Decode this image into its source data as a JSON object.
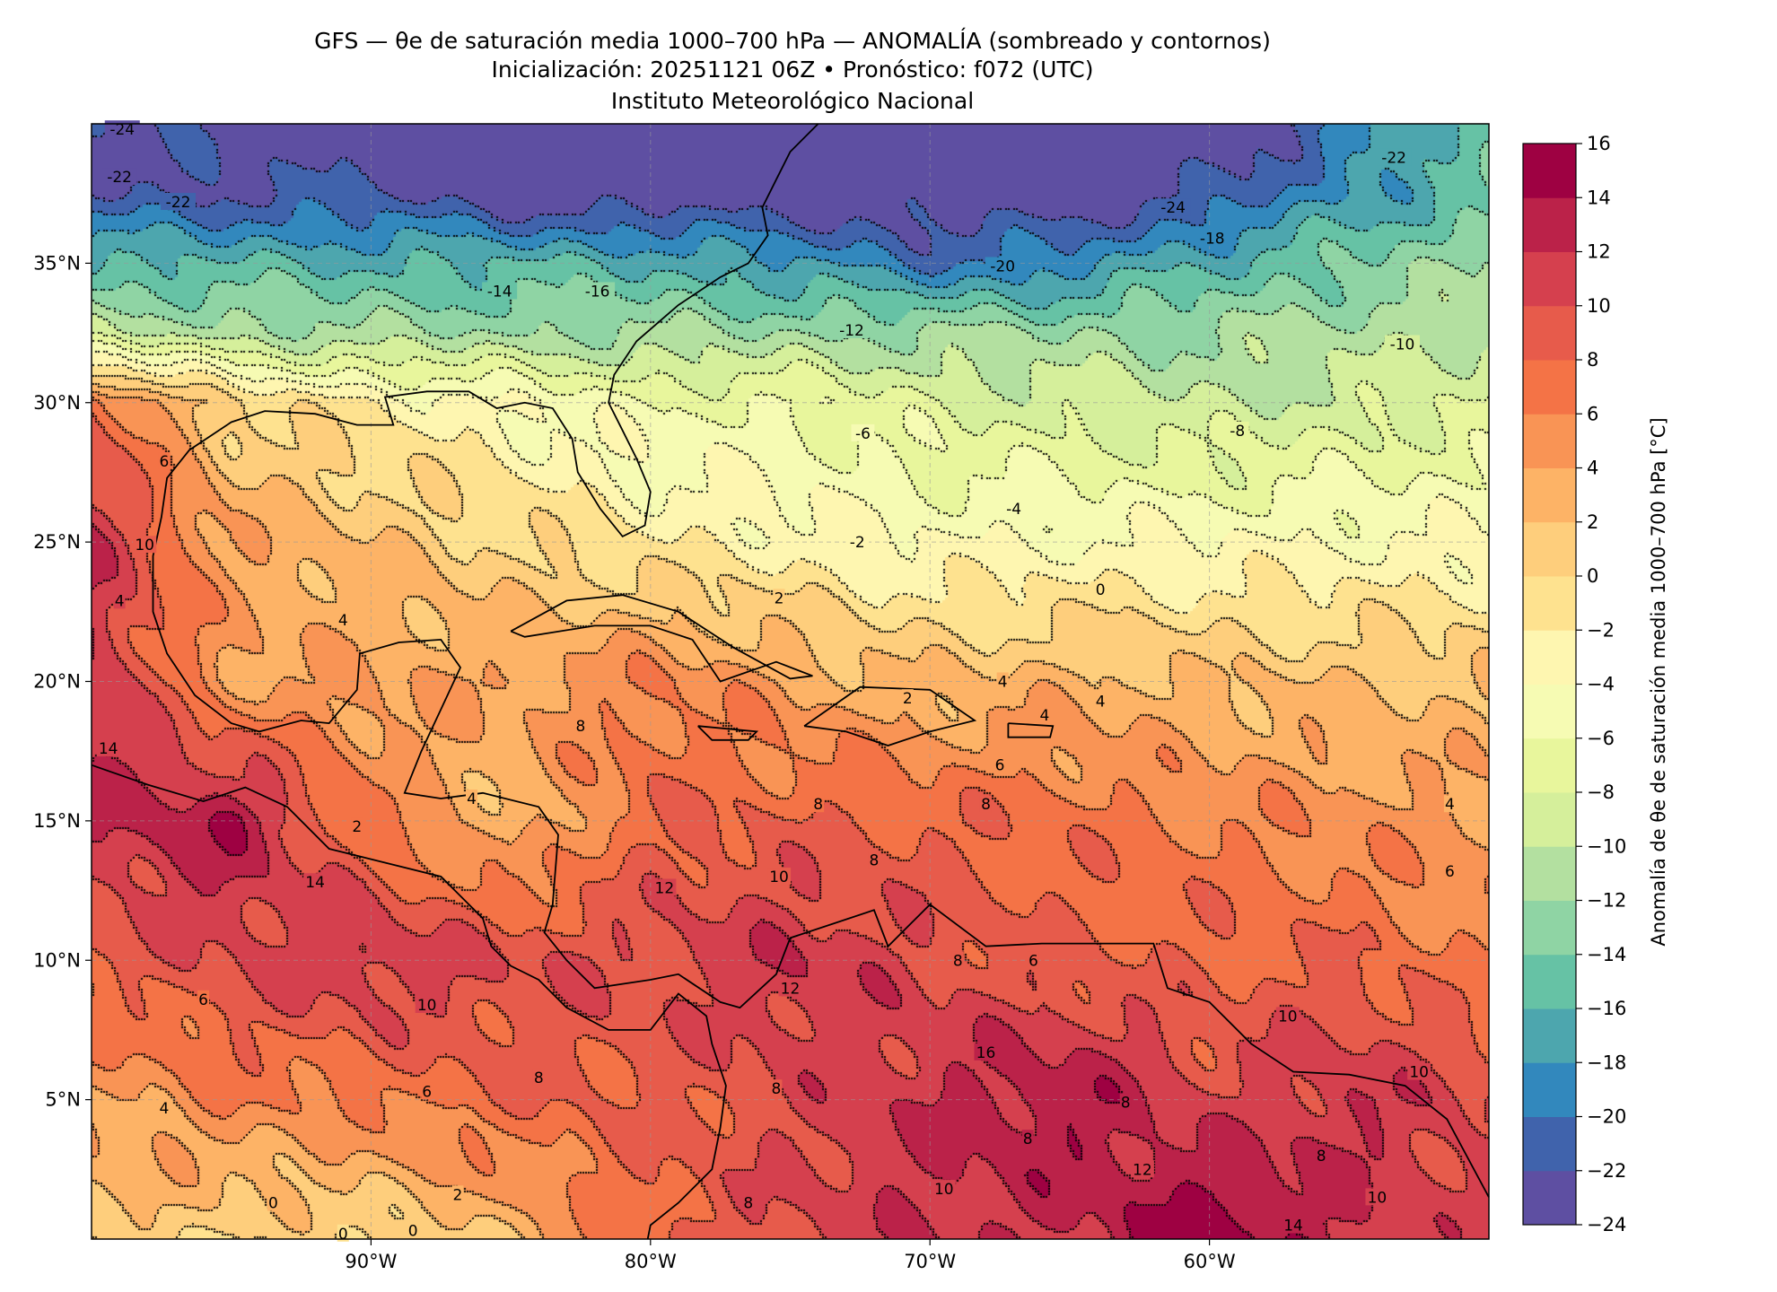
{
  "title": {
    "line1": "GFS — θe de saturación media 1000–700 hPa — ANOMALÍA (sombreado y contornos)",
    "line2": "Inicialización: 20251121 06Z   •   Pronóstico: f072 (UTC)",
    "line3": "Instituto Meteorológico Nacional"
  },
  "chart_data": {
    "type": "heatmap",
    "projection": "equirectangular",
    "extent": {
      "lon": [
        -100,
        -50
      ],
      "lat": [
        0,
        40
      ]
    },
    "x_ticks": [
      {
        "value": -90,
        "label": "90°W"
      },
      {
        "value": -80,
        "label": "80°W"
      },
      {
        "value": -70,
        "label": "70°W"
      },
      {
        "value": -60,
        "label": "60°W"
      }
    ],
    "y_ticks": [
      {
        "value": 5,
        "label": "5°N"
      },
      {
        "value": 10,
        "label": "10°N"
      },
      {
        "value": 15,
        "label": "15°N"
      },
      {
        "value": 20,
        "label": "20°N"
      },
      {
        "value": 25,
        "label": "25°N"
      },
      {
        "value": 30,
        "label": "30°N"
      },
      {
        "value": 35,
        "label": "35°N"
      }
    ],
    "grid": true,
    "colorbar": {
      "label": "Anomalía de θe de saturación media 1000–700 hPa [°C]",
      "location": "right",
      "levels": [
        -24,
        -22,
        -20,
        -18,
        -16,
        -14,
        -12,
        -10,
        -8,
        -6,
        -4,
        -2,
        0,
        2,
        4,
        6,
        8,
        10,
        12,
        14,
        16
      ],
      "tick_labels": [
        "−24",
        "−22",
        "−20",
        "−18",
        "−16",
        "−14",
        "−12",
        "−10",
        "−8",
        "−6",
        "−4",
        "−2",
        "0",
        "2",
        "4",
        "6",
        "8",
        "10",
        "12",
        "14",
        "16"
      ],
      "colors": [
        "#5e4fa2",
        "#4063ac",
        "#3288bd",
        "#4da6ae",
        "#66c2a5",
        "#8fd4a4",
        "#b3e0a0",
        "#d5ef9b",
        "#e8f69c",
        "#f6fbb3",
        "#fef6b0",
        "#fee28f",
        "#fece7c",
        "#fdb366",
        "#f99455",
        "#f47346",
        "#e75b4b",
        "#d5404e",
        "#bb2249",
        "#9e0142"
      ]
    },
    "field": {
      "units": "°C",
      "lons": [
        -100,
        -95,
        -90,
        -85,
        -80,
        -75,
        -70,
        -65,
        -60,
        -55,
        -50
      ],
      "lats": [
        40,
        37.5,
        35,
        32.5,
        30,
        25,
        20,
        15,
        10,
        5,
        0
      ],
      "values": [
        [
          -22,
          -23,
          -24,
          -24,
          -24,
          -24,
          -24,
          -24,
          -24,
          -20,
          -14
        ],
        [
          -22,
          -22,
          -22,
          -24,
          -24,
          -24,
          -24,
          -24,
          -22,
          -18,
          -15
        ],
        [
          -16,
          -16,
          -16,
          -16,
          -16,
          -18,
          -20,
          -19,
          -16,
          -14,
          -12
        ],
        [
          -10,
          -11,
          -12,
          -12,
          -12,
          -12,
          -12,
          -12,
          -12,
          -11,
          -10
        ],
        [
          8,
          0,
          -2,
          -4,
          -6,
          -6,
          -8,
          -9,
          -10,
          -9,
          -8
        ],
        [
          12,
          4,
          2,
          0,
          -2,
          -3,
          -4,
          -4,
          -4,
          -4,
          -4
        ],
        [
          12,
          4,
          4,
          4,
          6,
          4,
          2,
          3,
          2,
          2,
          2
        ],
        [
          12,
          14,
          6,
          2,
          8,
          8,
          8,
          7,
          6,
          5,
          4
        ],
        [
          8,
          10,
          12,
          10,
          10,
          12,
          10,
          8,
          8,
          8,
          6
        ],
        [
          4,
          6,
          6,
          8,
          8,
          10,
          12,
          14,
          10,
          12,
          10
        ],
        [
          2,
          0,
          0,
          2,
          8,
          10,
          12,
          12,
          16,
          12,
          10
        ]
      ]
    },
    "contour_labels": [
      {
        "lon": -98.9,
        "lat": 39.8,
        "text": "-24"
      },
      {
        "lon": -99,
        "lat": 38.1,
        "text": "-22"
      },
      {
        "lon": -96.9,
        "lat": 37.2,
        "text": "-22"
      },
      {
        "lon": -85.4,
        "lat": 34,
        "text": "-14"
      },
      {
        "lon": -81.9,
        "lat": 34,
        "text": "-16"
      },
      {
        "lon": -67.4,
        "lat": 34.9,
        "text": "-20"
      },
      {
        "lon": -59.9,
        "lat": 35.9,
        "text": "-18"
      },
      {
        "lon": -61.3,
        "lat": 37,
        "text": "-24"
      },
      {
        "lon": -53.4,
        "lat": 38.8,
        "text": "-22"
      },
      {
        "lon": -72.8,
        "lat": 32.6,
        "text": "-12"
      },
      {
        "lon": -53.1,
        "lat": 32.1,
        "text": "-10"
      },
      {
        "lon": -72.4,
        "lat": 28.9,
        "text": "-6"
      },
      {
        "lon": -59,
        "lat": 29,
        "text": "-8"
      },
      {
        "lon": -67,
        "lat": 26.2,
        "text": "-4"
      },
      {
        "lon": -72.6,
        "lat": 25,
        "text": "-2"
      },
      {
        "lon": -63.9,
        "lat": 23.3,
        "text": "0"
      },
      {
        "lon": -75.4,
        "lat": 23,
        "text": "2"
      },
      {
        "lon": -91,
        "lat": 22.2,
        "text": "4"
      },
      {
        "lon": -99,
        "lat": 22.9,
        "text": "4"
      },
      {
        "lon": -98.1,
        "lat": 24.9,
        "text": "10"
      },
      {
        "lon": -97.4,
        "lat": 27.9,
        "text": "6"
      },
      {
        "lon": -82.5,
        "lat": 18.4,
        "text": "8"
      },
      {
        "lon": -67.5,
        "lat": 17,
        "text": "6"
      },
      {
        "lon": -68,
        "lat": 15.6,
        "text": "8"
      },
      {
        "lon": -74,
        "lat": 15.6,
        "text": "8"
      },
      {
        "lon": -51.4,
        "lat": 15.6,
        "text": "4"
      },
      {
        "lon": -51.4,
        "lat": 13.2,
        "text": "6"
      },
      {
        "lon": -99.4,
        "lat": 17.6,
        "text": "14"
      },
      {
        "lon": -92,
        "lat": 12.8,
        "text": "14"
      },
      {
        "lon": -79.5,
        "lat": 12.6,
        "text": "12"
      },
      {
        "lon": -75.4,
        "lat": 13,
        "text": "10"
      },
      {
        "lon": -72,
        "lat": 13.6,
        "text": "8"
      },
      {
        "lon": -96,
        "lat": 8.6,
        "text": "6"
      },
      {
        "lon": -88,
        "lat": 8.4,
        "text": "10"
      },
      {
        "lon": -84,
        "lat": 5.8,
        "text": "8"
      },
      {
        "lon": -88,
        "lat": 5.3,
        "text": "6"
      },
      {
        "lon": -97.4,
        "lat": 4.7,
        "text": "4"
      },
      {
        "lon": -75,
        "lat": 9,
        "text": "12"
      },
      {
        "lon": -68,
        "lat": 6.7,
        "text": "16"
      },
      {
        "lon": -69,
        "lat": 10,
        "text": "8"
      },
      {
        "lon": -66.3,
        "lat": 10,
        "text": "6"
      },
      {
        "lon": -57.2,
        "lat": 8,
        "text": "10"
      },
      {
        "lon": -52.5,
        "lat": 6,
        "text": "10"
      },
      {
        "lon": -63,
        "lat": 4.9,
        "text": "8"
      },
      {
        "lon": -66.5,
        "lat": 3.6,
        "text": "8"
      },
      {
        "lon": -56,
        "lat": 3,
        "text": "8"
      },
      {
        "lon": -62.4,
        "lat": 2.5,
        "text": "12"
      },
      {
        "lon": -69.5,
        "lat": 1.8,
        "text": "10"
      },
      {
        "lon": -54,
        "lat": 1.5,
        "text": "10"
      },
      {
        "lon": -57,
        "lat": 0.5,
        "text": "14"
      },
      {
        "lon": -76.5,
        "lat": 1.3,
        "text": "8"
      },
      {
        "lon": -75.5,
        "lat": 5.4,
        "text": "8"
      },
      {
        "lon": -86.9,
        "lat": 1.6,
        "text": "2"
      },
      {
        "lon": -93.5,
        "lat": 1.3,
        "text": "0"
      },
      {
        "lon": -88.5,
        "lat": 0.3,
        "text": "0"
      },
      {
        "lon": -91,
        "lat": 0.2,
        "text": "0"
      },
      {
        "lon": -90.5,
        "lat": 14.8,
        "text": "2"
      },
      {
        "lon": -86.4,
        "lat": 15.8,
        "text": "4"
      },
      {
        "lon": -70.8,
        "lat": 19.4,
        "text": "2"
      },
      {
        "lon": -63.9,
        "lat": 19.3,
        "text": "4"
      },
      {
        "lon": -65.9,
        "lat": 18.8,
        "text": "4"
      },
      {
        "lon": -67.4,
        "lat": 20,
        "text": "4"
      }
    ]
  }
}
